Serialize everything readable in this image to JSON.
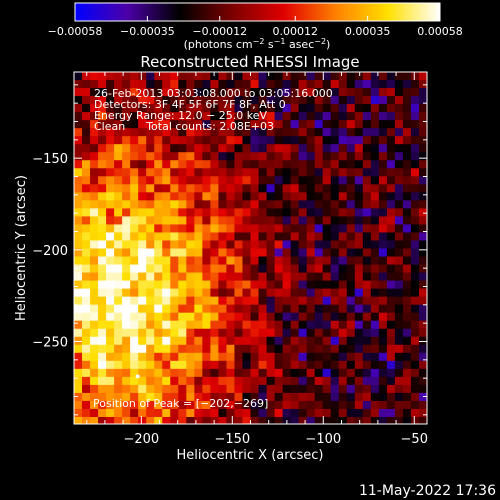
{
  "chart_data": {
    "type": "heatmap",
    "title": "Reconstructed RHESSI Image",
    "colorbar": {
      "tick_labels": [
        "−0.00058",
        "−0.00035",
        "−0.00012",
        "0.00012",
        "0.00035",
        "0.00058"
      ],
      "tick_values": [
        -0.00058,
        -0.00035,
        -0.00012,
        0.00012,
        0.00035,
        0.00058
      ],
      "range": [
        -0.00058,
        0.00058
      ],
      "label_parts": [
        "(photons cm",
        "−2",
        " s",
        "−1",
        " asec",
        "−2",
        ")"
      ],
      "stops": [
        "#0000ff",
        "#4b00a8",
        "#000000",
        "#7a0000",
        "#e00000",
        "#ff8000",
        "#ffe000",
        "#ffffff"
      ]
    },
    "xlabel": "Heliocentric X (arcsec)",
    "ylabel": "Heliocentric Y (arcsec)",
    "xlim": [
      -237,
      -43
    ],
    "ylim": [
      -295,
      -103
    ],
    "x_ticks": [
      -200,
      -150,
      -100,
      -50
    ],
    "y_ticks": [
      -150,
      -200,
      -250
    ],
    "x_tick_labels": [
      "−200",
      "−150",
      "−100",
      "−50"
    ],
    "y_tick_labels": [
      "−150",
      "−200",
      "−250"
    ],
    "annotations": [
      "26-Feb-2013 03:03:08.000 to 03:05:16.000",
      "Detectors: 3F 4F 5F 6F 7F 8F, Att 0",
      "Energy Range: 12.0 − 25.0 keV",
      "Clean      Total counts: 2.08E+03"
    ],
    "peak_label": "Position of Peak = [−202,−269]",
    "peak_position": [
      -202,
      -269
    ],
    "grid": false
  },
  "footer": {
    "timestamp": "11-May-2022 17:36"
  }
}
